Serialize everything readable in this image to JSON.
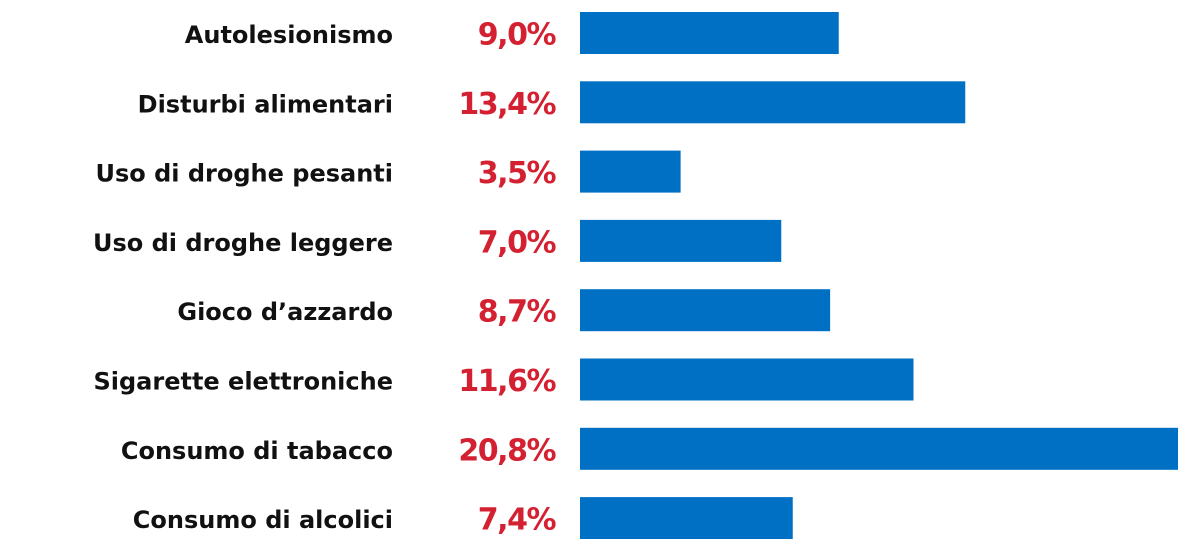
{
  "chart_data": {
    "type": "bar",
    "orientation": "horizontal",
    "categories": [
      "Autolesionismo",
      "Disturbi alimentari",
      "Uso di droghe pesanti",
      "Uso di droghe leggere",
      "Gioco d’azzardo",
      "Sigarette elettroniche",
      "Consumo di tabacco",
      "Consumo di alcolici"
    ],
    "values": [
      9.0,
      13.4,
      3.5,
      7.0,
      8.7,
      11.6,
      20.8,
      7.4
    ],
    "value_labels": [
      "9,0%",
      "13,4%",
      "3,5%",
      "7,0%",
      "8,7%",
      "11,6%",
      "20,8%",
      "7,4%"
    ],
    "color": "#0070c5"
  }
}
